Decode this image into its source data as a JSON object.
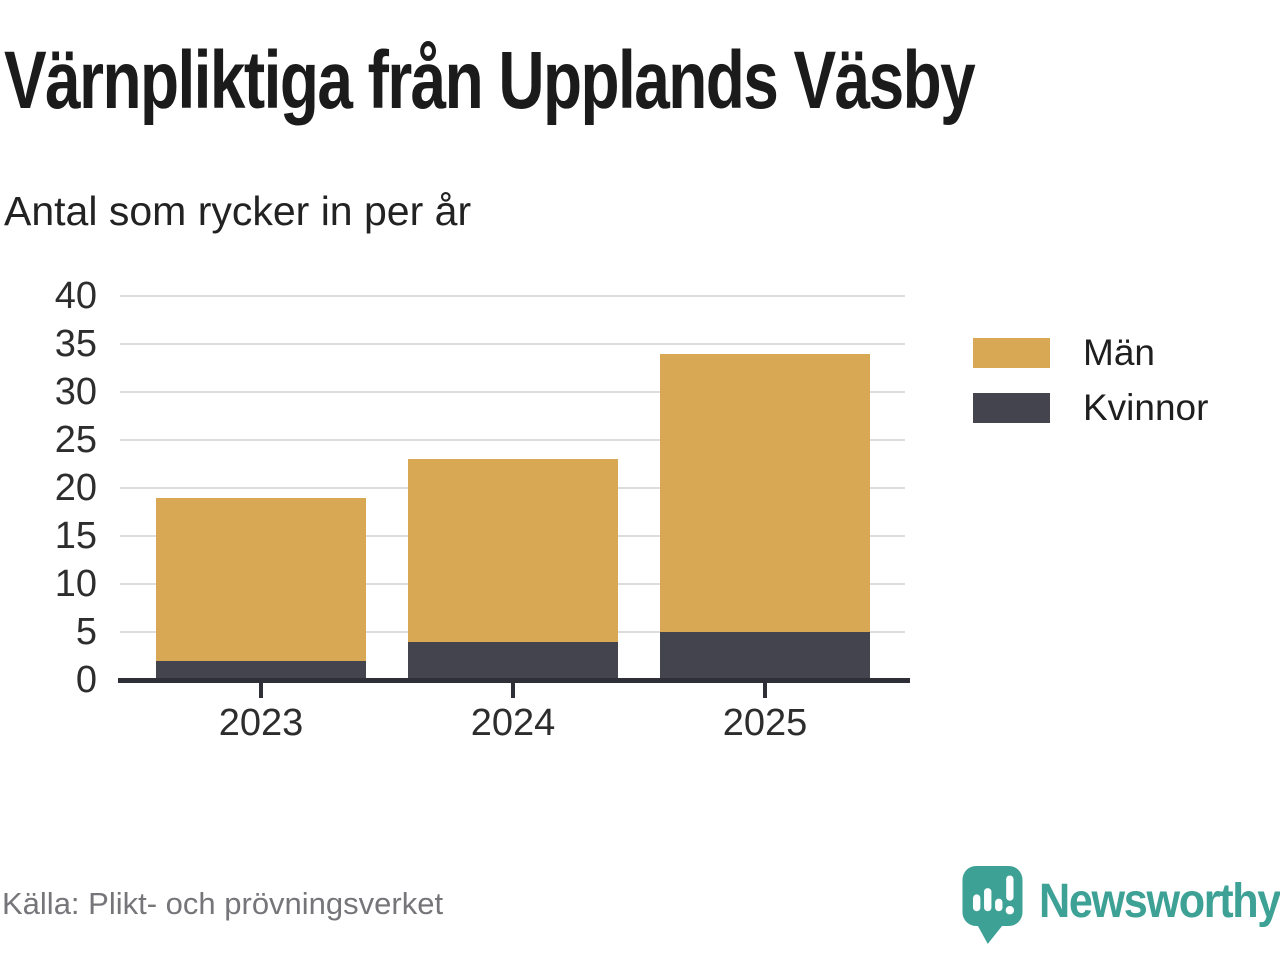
{
  "header": {
    "title": "Värnpliktiga från Upplands Väsby",
    "subtitle": "Antal som rycker in per år"
  },
  "chart_data": {
    "type": "bar",
    "stacked": true,
    "title": "Värnpliktiga från Upplands Väsby",
    "subtitle_as_ylabel": "Antal som rycker in per år",
    "categories": [
      "2023",
      "2024",
      "2025"
    ],
    "series": [
      {
        "name": "Män",
        "color": "#D8A855",
        "values": [
          17,
          19,
          29
        ]
      },
      {
        "name": "Kvinnor",
        "color": "#44444F",
        "values": [
          2,
          4,
          5
        ]
      }
    ],
    "stack_order_bottom_to_top": [
      "Kvinnor",
      "Män"
    ],
    "stack_totals": [
      19,
      23,
      34
    ],
    "ylim": [
      0,
      40
    ],
    "yticks": [
      0,
      5,
      10,
      15,
      20,
      25,
      30,
      35,
      40
    ],
    "grid": "horizontal",
    "legend_position": "right"
  },
  "footer": {
    "source": "Källa: Plikt- och prövningsverket",
    "brand_name": "Newsworthy",
    "brand_color": "#3DA195",
    "logo_icon": "speech-bubble-bar-chart-icon"
  },
  "colors": {
    "title": "#1B1B1B",
    "subtitle": "#222222",
    "axis_labels": "#2D2D2D",
    "gridline": "#DDDDDD",
    "axis_line": "#2F2F38",
    "source_text": "#76757A",
    "background": "#FFFFFF"
  }
}
